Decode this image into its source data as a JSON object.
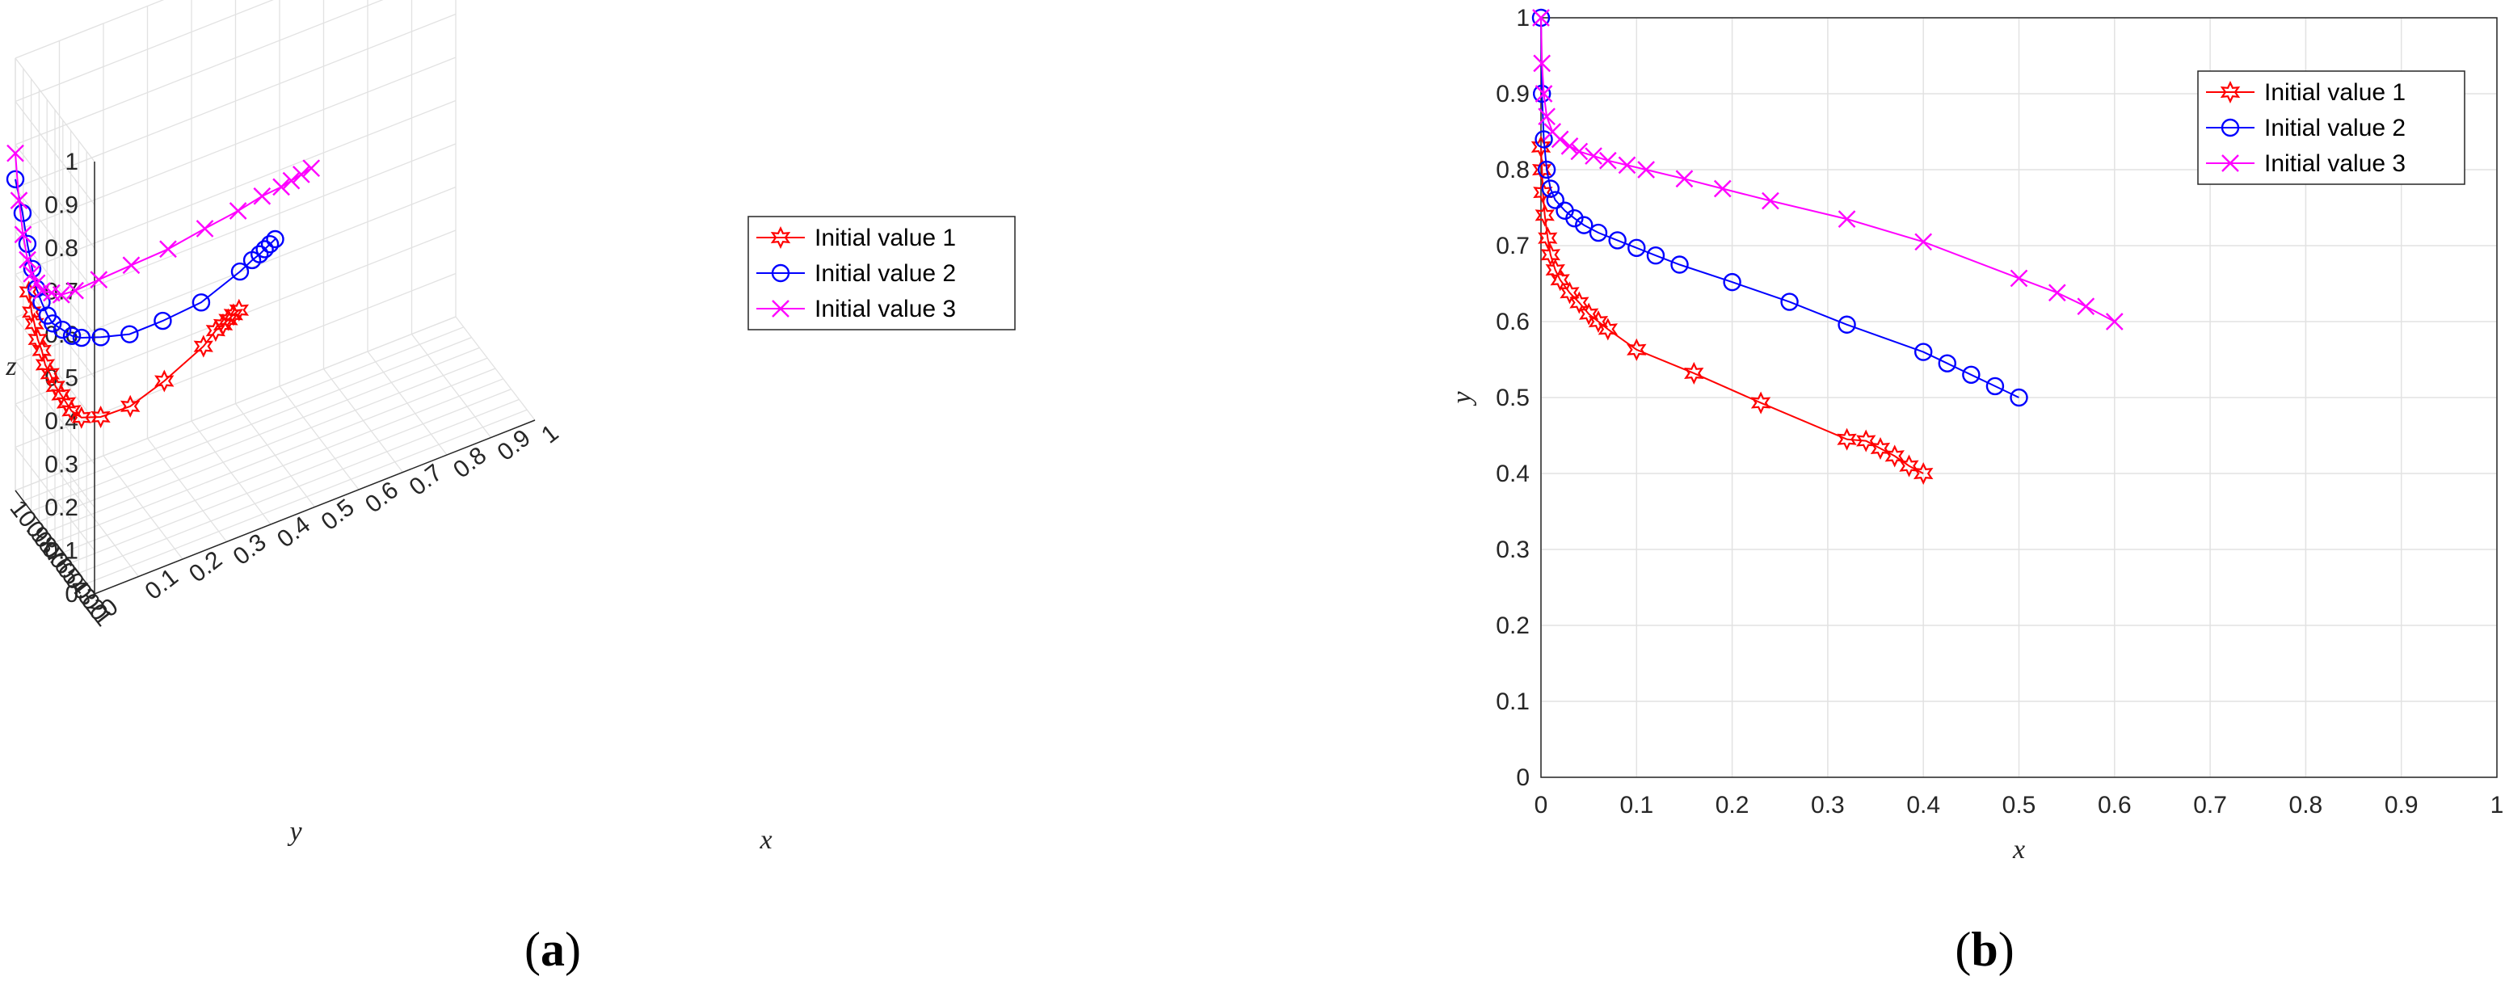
{
  "colors": {
    "series1": "#ff0000",
    "series2": "#0000ff",
    "series3": "#ff00ff",
    "grid": "#e2e2e2",
    "axis": "#262626"
  },
  "panels": {
    "a": {
      "open": "(",
      "letter": "a",
      "close": ")"
    },
    "b": {
      "open": "(",
      "letter": "b",
      "close": ")"
    }
  },
  "chart_data": [
    {
      "type": "line",
      "panel": "a",
      "projection": "3d",
      "xlabel": "x",
      "ylabel": "y",
      "zlabel": "z",
      "xlim": [
        0,
        1
      ],
      "ylim": [
        0,
        1
      ],
      "zlim": [
        0,
        1
      ],
      "grid": true,
      "legend_position": "top-right",
      "x_ticks": [
        "0",
        "0.1",
        "0.2",
        "0.3",
        "0.4",
        "0.5",
        "0.6",
        "0.7",
        "0.8",
        "0.9",
        "1"
      ],
      "y_ticks": [
        "0",
        "0.1",
        "0.2",
        "0.3",
        "0.4",
        "0.5",
        "0.6",
        "0.7",
        "0.8",
        "0.9",
        "1"
      ],
      "z_ticks": [
        "0",
        "0.1",
        "0.2",
        "0.3",
        "0.4",
        "0.5",
        "0.6",
        "0.7",
        "0.8",
        "0.9",
        "1"
      ],
      "series": [
        {
          "name": "Initial value 1",
          "marker": "hexagram",
          "x": [
            0.4,
            0.39,
            0.38,
            0.37,
            0.355,
            0.33,
            0.25,
            0.18,
            0.12,
            0.08,
            0.06,
            0.05,
            0.04,
            0.03,
            0.02,
            0.012,
            0.008,
            0.004,
            0.002,
            0.001,
            0
          ],
          "y": [
            0.4,
            0.415,
            0.425,
            0.435,
            0.445,
            0.46,
            0.51,
            0.55,
            0.59,
            0.61,
            0.625,
            0.635,
            0.645,
            0.66,
            0.675,
            0.69,
            0.71,
            0.74,
            0.77,
            0.8,
            0.83
          ],
          "z": [
            0.4,
            0.39,
            0.38,
            0.37,
            0.36,
            0.33,
            0.27,
            0.23,
            0.22,
            0.23,
            0.25,
            0.27,
            0.29,
            0.31,
            0.34,
            0.36,
            0.39,
            0.41,
            0.44,
            0.46,
            0.5
          ]
        },
        {
          "name": "Initial value 2",
          "marker": "circle",
          "x": [
            0.5,
            0.49,
            0.48,
            0.47,
            0.455,
            0.43,
            0.35,
            0.27,
            0.2,
            0.14,
            0.1,
            0.08,
            0.06,
            0.04,
            0.03,
            0.02,
            0.012,
            0.008,
            0.004,
            0.002,
            0
          ],
          "y": [
            0.5,
            0.51,
            0.52,
            0.53,
            0.54,
            0.555,
            0.6,
            0.64,
            0.67,
            0.7,
            0.72,
            0.73,
            0.74,
            0.75,
            0.76,
            0.78,
            0.8,
            0.83,
            0.87,
            0.92,
            1.0
          ],
          "z": [
            0.5,
            0.49,
            0.48,
            0.47,
            0.46,
            0.44,
            0.39,
            0.37,
            0.36,
            0.37,
            0.38,
            0.39,
            0.41,
            0.43,
            0.45,
            0.48,
            0.51,
            0.55,
            0.6,
            0.66,
            0.72
          ]
        },
        {
          "name": "Initial value 3",
          "marker": "x",
          "x": [
            0.6,
            0.58,
            0.56,
            0.54,
            0.5,
            0.45,
            0.38,
            0.3,
            0.22,
            0.15,
            0.1,
            0.07,
            0.05,
            0.03,
            0.02,
            0.012,
            0.006,
            0.003,
            0.001,
            0
          ],
          "y": [
            0.6,
            0.615,
            0.63,
            0.645,
            0.665,
            0.69,
            0.72,
            0.74,
            0.76,
            0.78,
            0.8,
            0.81,
            0.82,
            0.83,
            0.84,
            0.86,
            0.88,
            0.92,
            0.96,
            1.0
          ],
          "z": [
            0.6,
            0.59,
            0.58,
            0.57,
            0.56,
            0.54,
            0.52,
            0.5,
            0.49,
            0.48,
            0.47,
            0.47,
            0.48,
            0.49,
            0.51,
            0.53,
            0.56,
            0.61,
            0.68,
            0.78
          ]
        }
      ]
    },
    {
      "type": "line",
      "panel": "b",
      "xlabel": "x",
      "ylabel": "y",
      "xlim": [
        0,
        1
      ],
      "ylim": [
        0,
        1
      ],
      "grid": true,
      "legend_position": "top-right",
      "x_ticks": [
        "0",
        "0.1",
        "0.2",
        "0.3",
        "0.4",
        "0.5",
        "0.6",
        "0.7",
        "0.8",
        "0.9",
        "1"
      ],
      "y_ticks": [
        "0",
        "0.1",
        "0.2",
        "0.3",
        "0.4",
        "0.5",
        "0.6",
        "0.7",
        "0.8",
        "0.9",
        "1"
      ],
      "series": [
        {
          "name": "Initial value 1",
          "marker": "hexagram",
          "x": [
            0.4,
            0.385,
            0.37,
            0.355,
            0.34,
            0.32,
            0.23,
            0.16,
            0.1,
            0.07,
            0.06,
            0.05,
            0.04,
            0.03,
            0.02,
            0.015,
            0.01,
            0.007,
            0.004,
            0.002,
            0.001,
            0
          ],
          "y": [
            0.4,
            0.41,
            0.423,
            0.433,
            0.443,
            0.445,
            0.493,
            0.532,
            0.563,
            0.59,
            0.6,
            0.61,
            0.625,
            0.638,
            0.655,
            0.668,
            0.688,
            0.71,
            0.74,
            0.77,
            0.8,
            0.83
          ]
        },
        {
          "name": "Initial value 2",
          "marker": "circle",
          "x": [
            0.5,
            0.475,
            0.45,
            0.425,
            0.4,
            0.32,
            0.26,
            0.2,
            0.145,
            0.12,
            0.1,
            0.08,
            0.06,
            0.045,
            0.035,
            0.025,
            0.015,
            0.01,
            0.006,
            0.003,
            0.001,
            0
          ],
          "y": [
            0.5,
            0.515,
            0.53,
            0.545,
            0.56,
            0.596,
            0.626,
            0.652,
            0.675,
            0.687,
            0.697,
            0.707,
            0.717,
            0.727,
            0.736,
            0.746,
            0.76,
            0.775,
            0.8,
            0.84,
            0.9,
            1.0
          ]
        },
        {
          "name": "Initial value 3",
          "marker": "x",
          "x": [
            0.6,
            0.57,
            0.54,
            0.5,
            0.4,
            0.32,
            0.24,
            0.19,
            0.15,
            0.11,
            0.09,
            0.07,
            0.055,
            0.04,
            0.03,
            0.02,
            0.012,
            0.006,
            0.003,
            0.001,
            0
          ],
          "y": [
            0.6,
            0.62,
            0.638,
            0.657,
            0.705,
            0.735,
            0.759,
            0.775,
            0.788,
            0.8,
            0.806,
            0.812,
            0.818,
            0.824,
            0.831,
            0.84,
            0.85,
            0.87,
            0.9,
            0.94,
            1.0
          ]
        }
      ]
    }
  ]
}
